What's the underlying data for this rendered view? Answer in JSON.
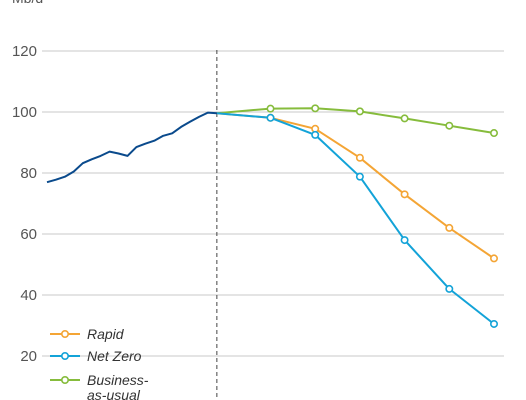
{
  "chart_data": {
    "type": "line",
    "ylabel": "Mb/d",
    "ylim": [
      20,
      120
    ],
    "yticks": [
      20,
      40,
      60,
      80,
      100,
      120
    ],
    "xlim": [
      2000,
      2050
    ],
    "divider_x": 2019,
    "grid": "horizontal",
    "legend_position": "bottom-left",
    "history": {
      "color": "#0a4a8c",
      "points": [
        [
          2000,
          77
        ],
        [
          2001,
          77.8
        ],
        [
          2002,
          78.8
        ],
        [
          2003,
          80.5
        ],
        [
          2004,
          83.2
        ],
        [
          2005,
          84.5
        ],
        [
          2006,
          85.6
        ],
        [
          2007,
          87
        ],
        [
          2008,
          86.4
        ],
        [
          2009,
          85.6
        ],
        [
          2010,
          88.5
        ],
        [
          2011,
          89.6
        ],
        [
          2012,
          90.6
        ],
        [
          2013,
          92.2
        ],
        [
          2014,
          93
        ],
        [
          2015,
          95.1
        ],
        [
          2016,
          96.8
        ],
        [
          2017,
          98.4
        ],
        [
          2018,
          99.8
        ],
        [
          2019,
          99.6
        ]
      ]
    },
    "series": [
      {
        "name": "Rapid",
        "color": "#f4a535",
        "points": [
          [
            2019,
            99.6
          ],
          [
            2025,
            98.1
          ],
          [
            2030,
            94.5
          ],
          [
            2035,
            85
          ],
          [
            2040,
            73
          ],
          [
            2045,
            62
          ],
          [
            2050,
            52
          ]
        ]
      },
      {
        "name": "Net Zero",
        "color": "#13a3d8",
        "points": [
          [
            2019,
            99.6
          ],
          [
            2025,
            98.1
          ],
          [
            2030,
            92.5
          ],
          [
            2035,
            78.8
          ],
          [
            2040,
            58
          ],
          [
            2045,
            42
          ],
          [
            2050,
            30.5
          ]
        ]
      },
      {
        "name": "Business-as-usual",
        "color": "#86bc3c",
        "points": [
          [
            2019,
            99.6
          ],
          [
            2025,
            101.1
          ],
          [
            2030,
            101.2
          ],
          [
            2035,
            100.2
          ],
          [
            2040,
            97.9
          ],
          [
            2045,
            95.5
          ],
          [
            2050,
            93.1
          ]
        ]
      }
    ],
    "legend": [
      {
        "lines": [
          "Rapid"
        ],
        "color": "#f4a535"
      },
      {
        "lines": [
          "Net Zero"
        ],
        "color": "#13a3d8"
      },
      {
        "lines": [
          "Business-",
          "as-usual"
        ],
        "color": "#86bc3c"
      }
    ]
  }
}
